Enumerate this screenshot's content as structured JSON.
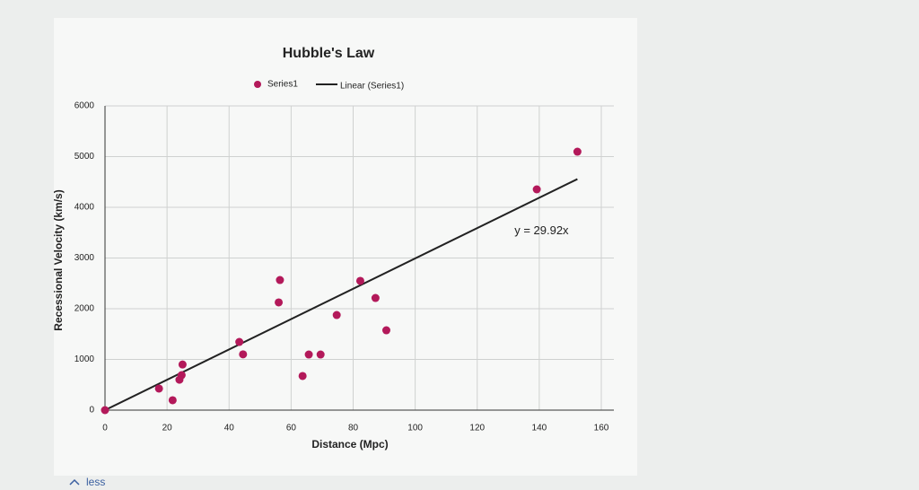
{
  "chart_data": {
    "type": "scatter",
    "title": "Hubble's Law",
    "x_label": "Distance (Mpc)",
    "y_label": "Recessional Velocity (km/s)",
    "series": [
      {
        "name": "Series1",
        "color": "#b3195a",
        "x": [
          0,
          17.4,
          21.8,
          25,
          24.7,
          24,
          43.3,
          44.5,
          56.4,
          56,
          63.7,
          65.7,
          69.5,
          74.7,
          82.3,
          87.2,
          90.7,
          139.2,
          152.3
        ],
        "values": [
          0,
          425,
          195,
          900,
          690,
          600,
          1345,
          1100,
          2566,
          2124,
          673,
          1097,
          1097,
          1876,
          2549,
          2212,
          1575,
          4354,
          5097
        ]
      }
    ],
    "trendline": {
      "name": "Linear (Series1)",
      "slope": 29.92,
      "label": "y = 29.92x",
      "color": "#222222"
    },
    "xlim": [
      0,
      160
    ],
    "xticks": [
      0,
      20,
      40,
      60,
      80,
      100,
      120,
      140,
      160
    ],
    "ylim": [
      0,
      6000
    ],
    "yticks": [
      0,
      1000,
      2000,
      3000,
      4000,
      5000,
      6000
    ],
    "grid": true,
    "legend": "top"
  },
  "footer_link": "less"
}
